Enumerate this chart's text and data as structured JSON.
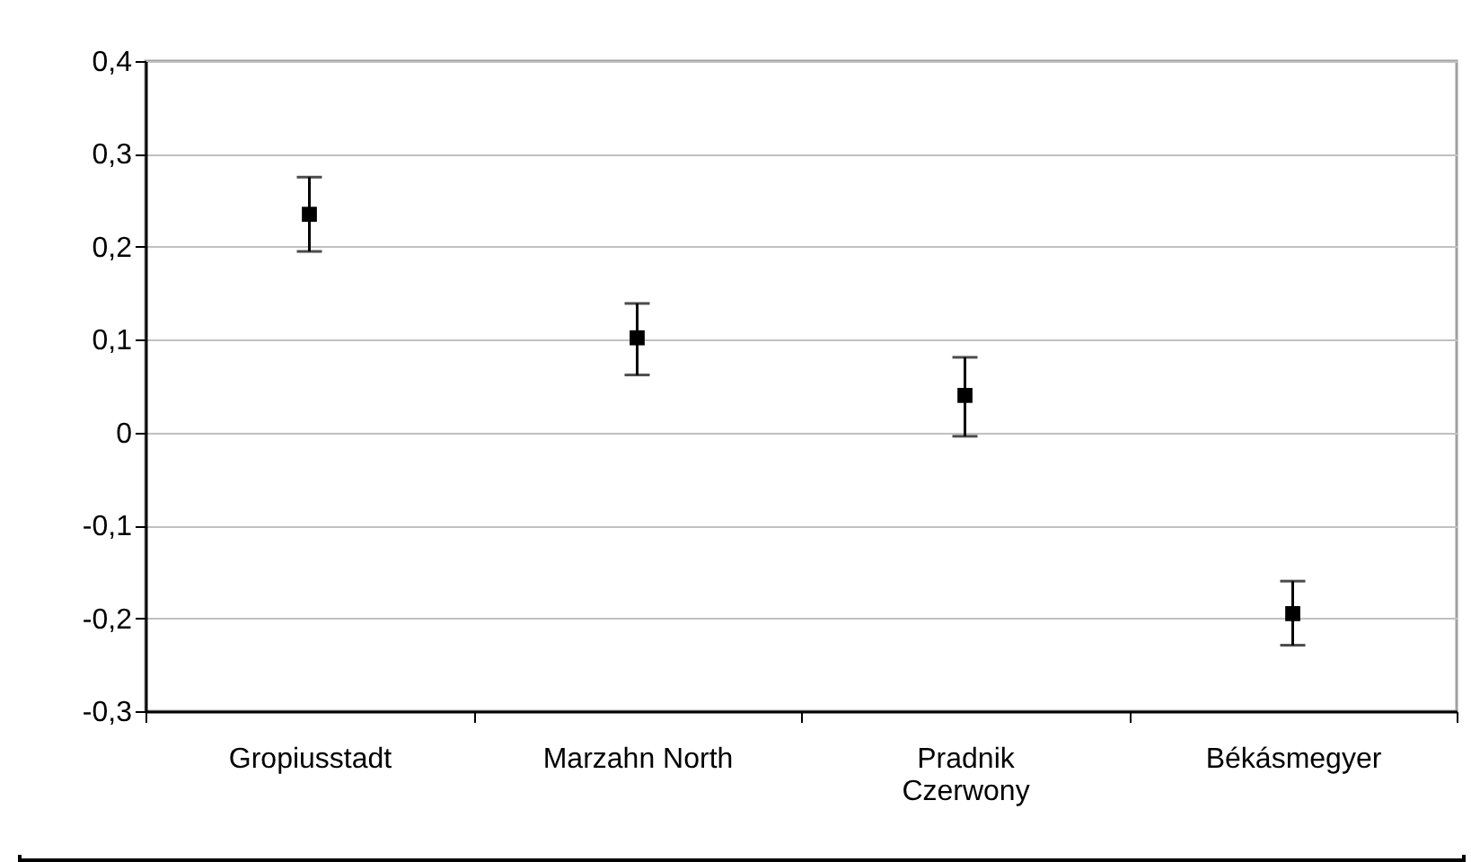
{
  "chart_data": {
    "type": "scatter",
    "marker": "square",
    "grid": "y",
    "categories": [
      "Gropiusstadt",
      "Marzahn North",
      "Pradnik Czerwony",
      "Békásmegyer"
    ],
    "series": [
      {
        "color": "#000000",
        "values": [
          0.235,
          0.102,
          0.04,
          -0.195
        ],
        "errors": [
          [
            0.195,
            0.275
          ],
          [
            0.062,
            0.139
          ],
          [
            -0.004,
            0.081
          ],
          [
            -0.229,
            -0.16
          ]
        ]
      }
    ],
    "ylim": [
      -0.3,
      0.4
    ],
    "yticks": [
      {
        "value": -0.3,
        "label": "-0,3"
      },
      {
        "value": -0.2,
        "label": "-0,2"
      },
      {
        "value": -0.1,
        "label": "-0,1"
      },
      {
        "value": 0,
        "label": "0"
      },
      {
        "value": 0.1,
        "label": "0,1"
      },
      {
        "value": 0.2,
        "label": "0,2"
      },
      {
        "value": 0.3,
        "label": "0,3"
      },
      {
        "value": 0.4,
        "label": "0,4"
      }
    ]
  }
}
